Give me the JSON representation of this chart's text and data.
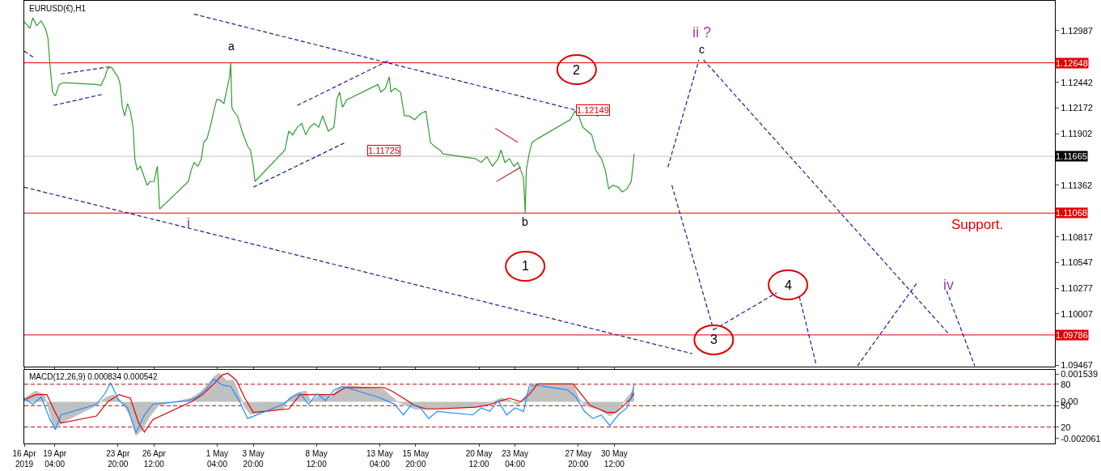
{
  "chart_data": [
    {
      "type": "line",
      "title": "EURUSD(€),H1",
      "xlim": [
        "2019-04-16T22:00",
        "2019-07-02T01:00"
      ],
      "ylim": [
        1.0945,
        1.133
      ],
      "tick_labels": "y",
      "grid": false,
      "line_style": "solid",
      "xticks": [
        {
          "value": "2019-04-16T22:00",
          "label": null
        },
        {
          "value": "2019-04-19T04:00",
          "label": null
        },
        {
          "value": "2019-04-23T20:00",
          "label": null
        },
        {
          "value": "2019-04-26T12:00",
          "label": null
        },
        {
          "value": "2019-05-01T04:00",
          "label": null
        },
        {
          "value": "2019-05-03T20:00",
          "label": null
        },
        {
          "value": "2019-05-08T12:00",
          "label": null
        },
        {
          "value": "2019-05-13T04:00",
          "label": null
        },
        {
          "value": "2019-05-15T20:00",
          "label": null
        },
        {
          "value": "2019-05-20T12:00",
          "label": null
        },
        {
          "value": "2019-05-23T04:00",
          "label": null
        },
        {
          "value": "2019-05-27T20:00",
          "label": null
        },
        {
          "value": "2019-05-30T12:00",
          "label": null
        }
      ],
      "yticks": [
        1.12987,
        1.12442,
        1.12172,
        1.11902,
        1.11362,
        1.10817,
        1.10547,
        1.10277,
        1.10007,
        1.09467
      ],
      "series": [
        {
          "color": "#2e9e2e",
          "x": [
            "2019-04-16T22:00",
            "2019-04-17T08:00",
            "2019-04-17T13:00",
            "2019-04-17T20:00",
            "2019-04-18T04:00",
            "2019-04-18T12:00",
            "2019-04-18T16:00",
            "2019-04-18T19:00",
            "2019-04-19T00:00",
            "2019-04-19T05:00",
            "2019-04-19T12:00",
            "2019-04-19T20:00",
            "2019-04-22T06:00",
            "2019-04-22T14:00",
            "2019-04-22T21:00",
            "2019-04-23T02:00",
            "2019-04-23T09:00",
            "2019-04-23T14:00",
            "2019-04-23T20:00",
            "2019-04-24T00:00",
            "2019-04-24T04:00",
            "2019-04-24T08:00",
            "2019-04-24T13:00",
            "2019-04-24T18:00",
            "2019-04-24T23:00",
            "2019-04-25T02:00",
            "2019-04-25T06:00",
            "2019-04-25T12:00",
            "2019-04-25T19:00",
            "2019-04-26T00:00",
            "2019-04-26T05:00",
            "2019-04-26T12:00",
            "2019-04-26T18:00",
            "2019-04-26T22:00",
            "2019-04-29T01:00",
            "2019-04-29T06:00",
            "2019-04-29T11:00",
            "2019-04-29T18:00",
            "2019-04-30T00:00",
            "2019-04-30T04:00",
            "2019-04-30T10:00",
            "2019-04-30T17:00",
            "2019-04-30T22:00",
            "2019-05-01T03:00",
            "2019-05-01T08:00",
            "2019-05-01T16:00",
            "2019-05-01T20:00",
            "2019-05-02T02:00",
            "2019-05-02T04:00",
            "2019-05-02T06:00",
            "2019-05-02T09:00",
            "2019-05-02T16:00",
            "2019-05-03T00:00",
            "2019-05-03T10:00",
            "2019-05-03T15:00",
            "2019-05-03T20:00",
            "2019-05-03T23:00",
            "2019-05-06T04:00",
            "2019-05-06T11:00",
            "2019-05-06T18:00",
            "2019-05-07T02:00",
            "2019-05-07T10:00",
            "2019-05-07T17:00",
            "2019-05-08T00:00",
            "2019-05-08T08:00",
            "2019-05-08T16:00",
            "2019-05-08T23:00",
            "2019-05-09T09:00",
            "2019-05-09T19:00",
            "2019-05-10T00:00",
            "2019-05-10T05:00",
            "2019-05-10T10:00",
            "2019-05-10T18:00",
            "2019-05-13T01:00",
            "2019-05-13T06:00",
            "2019-05-13T14:00",
            "2019-05-13T21:00",
            "2019-05-14T00:00",
            "2019-05-14T07:00",
            "2019-05-14T17:00",
            "2019-05-15T00:00",
            "2019-05-15T08:00",
            "2019-05-15T18:00",
            "2019-05-16T04:00",
            "2019-05-16T14:00",
            "2019-05-16T22:00",
            "2019-05-17T05:00",
            "2019-05-17T15:00",
            "2019-05-17T20:00",
            "2019-05-20T06:00",
            "2019-05-20T16:00",
            "2019-05-21T02:00",
            "2019-05-21T12:00",
            "2019-05-21T22:00",
            "2019-05-22T03:00",
            "2019-05-22T10:00",
            "2019-05-22T18:00",
            "2019-05-23T02:00",
            "2019-05-23T09:00",
            "2019-05-23T14:00",
            "2019-05-23T19:00",
            "2019-05-23T22:00",
            "2019-05-24T00:00",
            "2019-05-24T05:00",
            "2019-05-24T10:00",
            "2019-05-24T20:00",
            "2019-05-27T06:00",
            "2019-05-27T14:00",
            "2019-05-27T21:00",
            "2019-05-28T04:00",
            "2019-05-28T12:00",
            "2019-05-28T20:00",
            "2019-05-29T03:00",
            "2019-05-29T13:00",
            "2019-05-29T20:00",
            "2019-05-30T02:00",
            "2019-05-30T09:00",
            "2019-05-30T19:00",
            "2019-05-31T02:00",
            "2019-05-31T10:00",
            "2019-05-31T18:00",
            "2019-05-31T21:00",
            "2019-05-31T23:00"
          ],
          "values": [
            1.1308,
            1.1301,
            1.1312,
            1.1304,
            1.1309,
            1.13,
            1.1291,
            1.1267,
            1.1234,
            1.123,
            1.1242,
            1.1244,
            1.1242,
            1.1241,
            1.125,
            1.1259,
            1.126,
            1.1255,
            1.125,
            1.1242,
            1.1218,
            1.1209,
            1.1222,
            1.1214,
            1.1197,
            1.1164,
            1.1152,
            1.1156,
            1.1144,
            1.1136,
            1.114,
            1.114,
            1.1156,
            1.1111,
            1.114,
            1.1152,
            1.116,
            1.1156,
            1.1164,
            1.1181,
            1.1185,
            1.1201,
            1.1214,
            1.1226,
            1.1226,
            1.1222,
            1.1234,
            1.125,
            1.1265,
            1.1218,
            1.1214,
            1.1209,
            1.1193,
            1.1177,
            1.1173,
            1.1156,
            1.114,
            1.1173,
            1.1193,
            1.1189,
            1.1197,
            1.1201,
            1.1189,
            1.1197,
            1.1201,
            1.1197,
            1.1209,
            1.1193,
            1.1197,
            1.1226,
            1.1234,
            1.1218,
            1.1226,
            1.1242,
            1.1234,
            1.1238,
            1.125,
            1.1234,
            1.1238,
            1.1234,
            1.1209,
            1.1209,
            1.1205,
            1.1211,
            1.1214,
            1.1181,
            1.1177,
            1.1173,
            1.1169,
            1.1164,
            1.116,
            1.1166,
            1.1156,
            1.1164,
            1.1173,
            1.116,
            1.1164,
            1.1156,
            1.116,
            1.1152,
            1.1144,
            1.1107,
            1.1152,
            1.1169,
            1.1181,
            1.1185,
            1.1205,
            1.1214,
            1.1209,
            1.1197,
            1.1193,
            1.1189,
            1.1173,
            1.1164,
            1.1152,
            1.1132,
            1.1136,
            1.1134,
            1.1129,
            1.1132,
            1.114,
            1.1156,
            1.1169
          ]
        },
        {
          "color": "#1c1c9c",
          "line_style": "dashed",
          "x": [
            "2019-04-29T11:00",
            "2019-05-29T08:00"
          ],
          "values": [
            1.1316,
            1.1209
          ]
        },
        {
          "color": "#1c1c9c",
          "line_style": "dashed",
          "x": [
            "2019-04-16T22:00",
            "2019-06-05T06:00"
          ],
          "values": [
            1.1134,
            1.0959
          ]
        },
        {
          "color": "#1c1c9c",
          "line_style": "dashed",
          "x": [
            "2019-04-16T22:00",
            "2019-04-17T16:00"
          ],
          "values": [
            1.1277,
            1.127
          ]
        },
        {
          "color": "#1c1c9c",
          "line_style": "dashed",
          "x": [
            "2019-04-19T15:00",
            "2019-04-23T10:00"
          ],
          "values": [
            1.1253,
            1.1261
          ]
        },
        {
          "color": "#1c1c9c",
          "line_style": "dashed",
          "x": [
            "2019-04-19T02:00",
            "2019-04-22T19:00"
          ],
          "values": [
            1.122,
            1.1232
          ]
        },
        {
          "color": "#1c1c9c",
          "line_style": "dashed",
          "x": [
            "2019-05-07T02:00",
            "2019-05-13T23:00"
          ],
          "values": [
            1.122,
            1.1268
          ]
        },
        {
          "color": "#1c1c9c",
          "line_style": "dashed",
          "x": [
            "2019-05-03T20:00",
            "2019-05-10T15:00"
          ],
          "values": [
            1.1134,
            1.1181
          ]
        },
        {
          "color": "#c83232",
          "x": [
            "2019-05-21T17:00",
            "2019-05-23T09:00"
          ],
          "values": [
            1.1196,
            1.1181
          ]
        },
        {
          "color": "#c83232",
          "x": [
            "2019-05-21T19:00",
            "2019-05-23T14:00"
          ],
          "values": [
            1.114,
            1.1155
          ]
        },
        {
          "color": "#1c1c9c",
          "line_style": "dashed",
          "x": [
            "2019-06-03T11:00",
            "2019-06-05T18:00"
          ],
          "values": [
            1.1155,
            1.1268
          ]
        },
        {
          "color": "#1c1c9c",
          "line_style": "dashed",
          "x": [
            "2019-06-06T02:00",
            "2019-06-24T06:00"
          ],
          "values": [
            1.1268,
            1.0979
          ]
        },
        {
          "color": "#1c1c9c",
          "line_style": "dashed",
          "x": [
            "2019-06-03T18:00",
            "2019-06-06T20:00"
          ],
          "values": [
            1.1136,
            1.0984
          ]
        },
        {
          "color": "#1c1c9c",
          "line_style": "dashed",
          "x": [
            "2019-06-06T20:00",
            "2019-06-11T12:00"
          ],
          "values": [
            1.0984,
            1.1023
          ]
        },
        {
          "color": "#1c1c9c",
          "line_style": "dashed",
          "x": [
            "2019-06-13T04:00",
            "2019-06-14T10:00"
          ],
          "values": [
            1.1019,
            1.0947
          ]
        },
        {
          "color": "#1c1c9c",
          "line_style": "dashed",
          "x": [
            "2019-06-17T11:00",
            "2019-06-21T20:00"
          ],
          "values": [
            1.0946,
            1.1033
          ]
        },
        {
          "color": "#1c1c9c",
          "line_style": "dashed",
          "x": [
            "2019-06-24T01:00",
            "2019-06-26T03:00"
          ],
          "values": [
            1.1025,
            1.0946
          ]
        }
      ],
      "ref_lines": [
        {
          "axis": "y",
          "value": 1.12648,
          "label": "1.12648",
          "color": "#e00000"
        },
        {
          "axis": "y",
          "value": 1.11665,
          "label": "1.11665",
          "color": "#c0c0c0"
        },
        {
          "axis": "y",
          "value": 1.11068,
          "label": "1.11068",
          "color": "#e00000"
        },
        {
          "axis": "y",
          "value": 1.09786,
          "label": "1.09786",
          "color": "#e00000"
        }
      ],
      "annotations": [
        "a",
        "b",
        "c",
        "i",
        "ii ?",
        "iv",
        "1",
        "2",
        "3",
        "4",
        "Support.",
        "1.12149",
        "1.11725"
      ]
    },
    {
      "type": "line",
      "title": "MACD(12,26,9) 0.000834 0.000542",
      "xlim": [
        "2019-04-16T22:00",
        "2019-07-02T01:00"
      ],
      "ylim": [
        -0.00234,
        0.00178
      ],
      "y2lim": [
        -3,
        100
      ],
      "grid": false,
      "xticks": [
        {
          "value": "2019-04-16T22:00",
          "label": "16 Apr 2019"
        },
        {
          "value": "2019-04-19T04:00",
          "label": "19 Apr 04:00"
        },
        {
          "value": "2019-04-23T20:00",
          "label": "23 Apr 20:00"
        },
        {
          "value": "2019-04-26T12:00",
          "label": "26 Apr 12:00"
        },
        {
          "value": "2019-05-01T04:00",
          "label": "1 May 04:00"
        },
        {
          "value": "2019-05-03T20:00",
          "label": "3 May 20:00"
        },
        {
          "value": "2019-05-08T12:00",
          "label": "8 May 12:00"
        },
        {
          "value": "2019-05-13T04:00",
          "label": "13 May 04:00"
        },
        {
          "value": "2019-05-15T20:00",
          "label": "15 May 20:00"
        },
        {
          "value": "2019-05-20T12:00",
          "label": "20 May 12:00"
        },
        {
          "value": "2019-05-23T04:00",
          "label": "23 May 04:00"
        },
        {
          "value": "2019-05-27T20:00",
          "label": "27 May 20:00"
        },
        {
          "value": "2019-05-30T12:00",
          "label": "30 May 12:00"
        }
      ],
      "yticks": [
        0.001539,
        {
          "value": 0,
          "label": "0.00"
        },
        -0.002061
      ],
      "y2ticks": [
        80,
        50,
        20
      ],
      "series": [
        {
          "type": "area",
          "color": "#c0c0c0",
          "x": [
            "2019-04-16T22:00",
            "2019-04-17T18:00",
            "2019-04-18T09:00",
            "2019-04-18T19:00",
            "2019-04-19T05:00",
            "2019-04-19T15:00",
            "2019-04-22T06:00",
            "2019-04-22T21:00",
            "2019-04-23T12:00",
            "2019-04-24T03:00",
            "2019-04-24T18:00",
            "2019-04-25T04:00",
            "2019-04-25T14:00",
            "2019-04-26T05:00",
            "2019-04-26T20:00",
            "2019-04-29T06:00",
            "2019-04-29T21:00",
            "2019-04-30T12:00",
            "2019-04-30T22:00",
            "2019-05-01T08:00",
            "2019-05-01T20:00",
            "2019-05-02T09:00",
            "2019-05-02T19:00",
            "2019-05-03T05:00",
            "2019-05-03T15:00",
            "2019-05-06T01:00",
            "2019-05-06T11:00",
            "2019-05-07T02:00",
            "2019-05-07T17:00",
            "2019-05-08T03:00",
            "2019-05-08T18:00",
            "2019-05-09T14:00",
            "2019-05-10T05:00",
            "2019-05-10T20:00",
            "2019-05-13T11:00",
            "2019-05-13T21:00",
            "2019-05-14T12:00",
            "2019-05-15T03:00",
            "2019-05-15T18:00",
            "2019-05-16T09:00",
            "2019-05-17T00:00",
            "2019-05-17T15:00",
            "2019-05-20T06:00",
            "2019-05-20T21:00",
            "2019-05-21T12:00",
            "2019-05-22T03:00",
            "2019-05-22T18:00",
            "2019-05-23T09:00",
            "2019-05-24T00:00",
            "2019-05-24T10:00",
            "2019-05-27T01:00",
            "2019-05-27T11:00",
            "2019-05-27T21:00",
            "2019-05-28T07:00",
            "2019-05-28T17:00",
            "2019-05-29T08:00",
            "2019-05-29T18:00",
            "2019-05-30T04:00",
            "2019-05-30T14:00",
            "2019-05-31T00:00",
            "2019-05-31T10:00",
            "2019-05-31T18:00",
            "2019-05-31T23:00"
          ],
          "values": [
            0.0002,
            0.0006,
            0.0004,
            -0.0006,
            -0.0016,
            -0.0012,
            -0.0002,
            0.0002,
            0.0004,
            0.0,
            -0.0008,
            -0.0019,
            -0.0016,
            -0.0008,
            -0.0002,
            0.0002,
            0.0005,
            0.001,
            0.0014,
            0.0016,
            0.0012,
            0.0012,
            0.0004,
            -0.0003,
            -0.0007,
            -0.0004,
            0.0002,
            0.0005,
            0.0006,
            0.0,
            0.0004,
            0.0003,
            0.0008,
            0.0009,
            0.0007,
            0.0004,
            0.0,
            -0.0002,
            -0.0004,
            -0.0004,
            -0.0004,
            -0.0004,
            -0.0003,
            -0.0002,
            0.0,
            0.0002,
            0.0001,
            -0.0002,
            0.0004,
            0.0009,
            0.001,
            0.001,
            0.0002,
            -0.0002,
            -0.0003,
            -0.0004,
            -0.0006,
            -0.0008,
            -0.0006,
            -0.0002,
            0.0002,
            0.0005,
            0.0008
          ]
        },
        {
          "color": "#e00000",
          "x": [
            "2019-04-16T22:00",
            "2019-04-17T18:00",
            "2019-04-18T14:00",
            "2019-04-19T05:00",
            "2019-04-19T15:00",
            "2019-04-22T06:00",
            "2019-04-23T02:00",
            "2019-04-23T22:00",
            "2019-04-24T18:00",
            "2019-04-25T09:00",
            "2019-04-25T19:00",
            "2019-04-26T10:00",
            "2019-04-29T06:00",
            "2019-04-30T02:00",
            "2019-04-30T22:00",
            "2019-05-01T13:00",
            "2019-05-01T23:00",
            "2019-05-02T14:00",
            "2019-05-03T05:00",
            "2019-05-03T20:00",
            "2019-05-06T11:00",
            "2019-05-07T07:00",
            "2019-05-08T03:00",
            "2019-05-08T23:00",
            "2019-05-09T19:00",
            "2019-05-10T15:00",
            "2019-05-13T11:00",
            "2019-05-14T02:00",
            "2019-05-14T22:00",
            "2019-05-15T18:00",
            "2019-05-16T14:00",
            "2019-05-17T10:00",
            "2019-05-20T06:00",
            "2019-05-21T02:00",
            "2019-05-21T22:00",
            "2019-05-22T18:00",
            "2019-05-23T14:00",
            "2019-05-24T05:00",
            "2019-05-24T20:00",
            "2019-05-27T11:00",
            "2019-05-28T02:00",
            "2019-05-28T17:00",
            "2019-05-29T08:00",
            "2019-05-29T23:00",
            "2019-05-30T14:00",
            "2019-05-31T05:00",
            "2019-05-31T18:00",
            "2019-05-31T23:00"
          ],
          "values": [
            0.0001,
            0.0004,
            0.0004,
            -0.0006,
            -0.0012,
            -0.0008,
            0.0,
            0.0004,
            0.0002,
            -0.0012,
            -0.0017,
            -0.001,
            0.0,
            0.0004,
            0.001,
            0.0015,
            0.0016,
            0.0012,
            0.0002,
            -0.0006,
            -0.0004,
            0.0004,
            0.0004,
            0.0004,
            0.0004,
            0.0008,
            0.0008,
            0.0006,
            0.0002,
            -0.0002,
            -0.0004,
            -0.0004,
            -0.0003,
            -0.0002,
            0.0,
            0.0002,
            0.0,
            0.0004,
            0.001,
            0.001,
            0.0004,
            -0.0002,
            -0.0004,
            -0.0006,
            -0.0006,
            -0.0002,
            0.0002,
            0.0005
          ]
        },
        {
          "color": "#1e90ff",
          "axis": "y2",
          "x": [
            "2019-04-16T22:00",
            "2019-04-17T13:00",
            "2019-04-18T04:00",
            "2019-04-18T19:00",
            "2019-04-19T05:00",
            "2019-04-19T15:00",
            "2019-04-22T06:00",
            "2019-04-22T21:00",
            "2019-04-23T07:00",
            "2019-04-23T22:00",
            "2019-04-24T13:00",
            "2019-04-25T04:00",
            "2019-04-25T19:00",
            "2019-04-26T10:00",
            "2019-04-29T01:00",
            "2019-04-29T16:00",
            "2019-04-30T07:00",
            "2019-04-30T22:00",
            "2019-05-01T13:00",
            "2019-05-02T04:00",
            "2019-05-02T19:00",
            "2019-05-03T10:00",
            "2019-05-06T01:00",
            "2019-05-06T16:00",
            "2019-05-07T07:00",
            "2019-05-07T22:00",
            "2019-05-08T13:00",
            "2019-05-09T04:00",
            "2019-05-09T19:00",
            "2019-05-10T10:00",
            "2019-05-13T01:00",
            "2019-05-13T16:00",
            "2019-05-14T07:00",
            "2019-05-14T22:00",
            "2019-05-15T13:00",
            "2019-05-16T04:00",
            "2019-05-16T19:00",
            "2019-05-17T10:00",
            "2019-05-20T01:00",
            "2019-05-20T16:00",
            "2019-05-21T07:00",
            "2019-05-21T22:00",
            "2019-05-22T13:00",
            "2019-05-23T04:00",
            "2019-05-23T19:00",
            "2019-05-24T05:00",
            "2019-05-24T15:00",
            "2019-05-27T01:00",
            "2019-05-27T16:00",
            "2019-05-28T07:00",
            "2019-05-28T22:00",
            "2019-05-29T13:00",
            "2019-05-30T04:00",
            "2019-05-30T19:00",
            "2019-05-31T10:00",
            "2019-05-31T18:00",
            "2019-05-31T23:00"
          ],
          "values": [
            60,
            52,
            62,
            32,
            17,
            37,
            52,
            67,
            82,
            57,
            47,
            12,
            37,
            52,
            57,
            62,
            72,
            87,
            79,
            77,
            57,
            32,
            52,
            62,
            67,
            52,
            67,
            57,
            72,
            77,
            62,
            57,
            52,
            37,
            52,
            47,
            32,
            42,
            37,
            47,
            42,
            57,
            37,
            47,
            42,
            77,
            79,
            72,
            62,
            42,
            32,
            37,
            22,
            37,
            47,
            62,
            79
          ]
        }
      ],
      "ref_lines": [
        {
          "axis": "y2",
          "value": 80,
          "color": "#c00000",
          "line_style": "dashed"
        },
        {
          "axis": "y2",
          "value": 50,
          "color": "#c00000",
          "line_style": "dashed"
        },
        {
          "axis": "y2",
          "value": 20,
          "color": "#c00000",
          "line_style": "dashed"
        }
      ]
    }
  ]
}
